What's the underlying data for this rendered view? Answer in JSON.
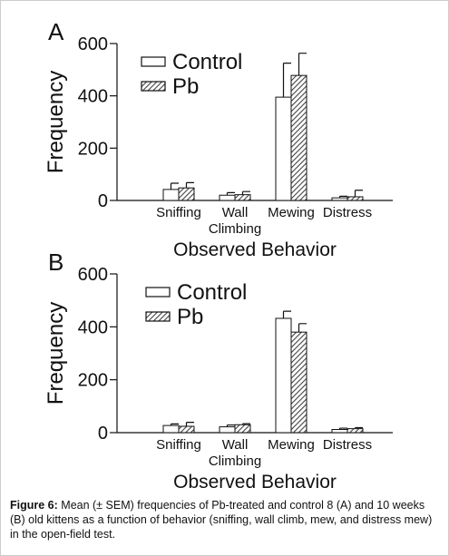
{
  "chart_data": [
    {
      "type": "bar",
      "label": "A",
      "ylabel": "Frequency",
      "xlabel": "Observed Behavior",
      "categories": [
        "Sniffing",
        "Wall Climbing",
        "Mewing",
        "Distress"
      ],
      "series": [
        {
          "name": "Control",
          "color": "#ffffff",
          "hatch": false,
          "values": [
            42,
            20,
            395,
            10
          ],
          "errors": [
            24,
            10,
            130,
            6
          ]
        },
        {
          "name": "Pb",
          "color": "#444444",
          "hatch": true,
          "values": [
            48,
            22,
            478,
            14
          ],
          "errors": [
            20,
            12,
            85,
            25
          ]
        }
      ],
      "ylim": [
        0,
        600
      ],
      "yticks": [
        0,
        200,
        400,
        600
      ],
      "legend": "upper left"
    },
    {
      "type": "bar",
      "label": "B",
      "ylabel": "Frequency",
      "xlabel": "Observed Behavior",
      "categories": [
        "Sniffing",
        "Wall Climbing",
        "Mewing",
        "Distress"
      ],
      "series": [
        {
          "name": "Control",
          "color": "#ffffff",
          "hatch": false,
          "values": [
            27,
            22,
            432,
            12
          ],
          "errors": [
            6,
            7,
            27,
            5
          ]
        },
        {
          "name": "Pb",
          "color": "#444444",
          "hatch": true,
          "values": [
            24,
            30,
            380,
            15
          ],
          "errors": [
            15,
            4,
            32,
            4
          ]
        }
      ],
      "ylim": [
        0,
        600
      ],
      "yticks": [
        0,
        200,
        400,
        600
      ],
      "legend": "upper left"
    }
  ],
  "caption": {
    "label": "Figure 6:",
    "text": "Mean (± SEM) frequencies of Pb-treated and control 8 (A) and 10 weeks (B) old kittens as a function of behavior (sniffing, wall climb, mew, and distress mew) in the open-field test."
  }
}
